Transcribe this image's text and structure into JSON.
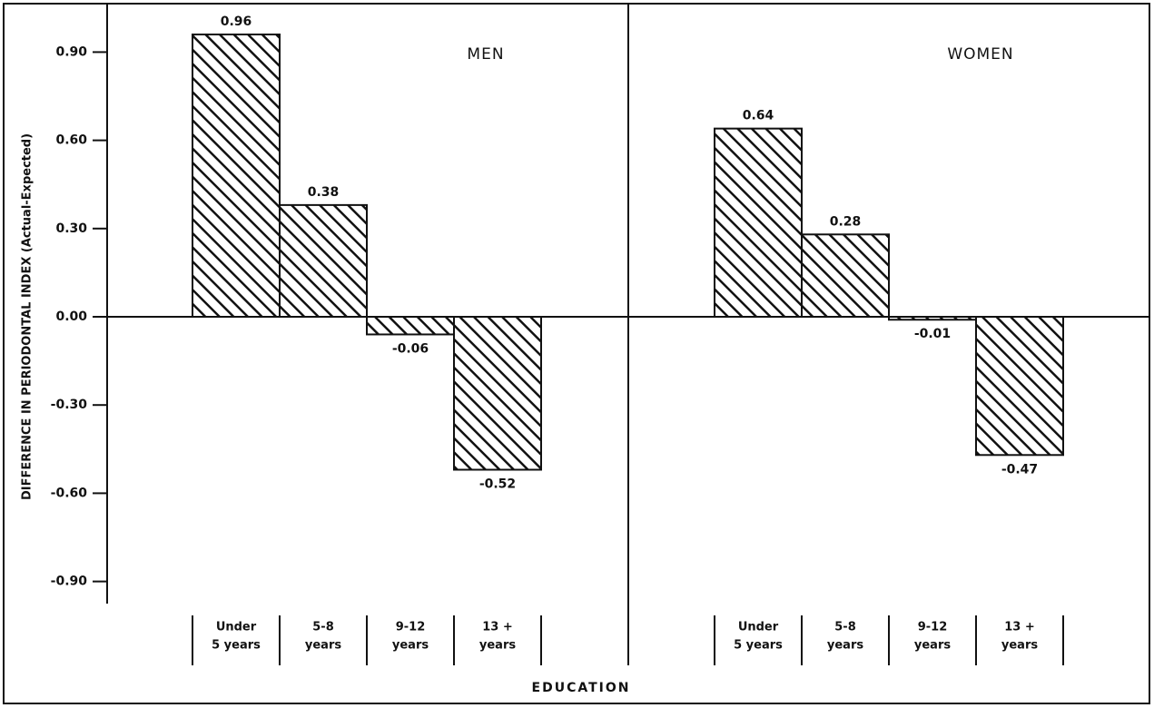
{
  "chart_data": {
    "type": "bar",
    "y_label": "DIFFERENCE IN PERIODONTAL INDEX (Actual-Expected)",
    "x_label": "EDUCATION",
    "ylim": [
      -1.0,
      1.0
    ],
    "yticks": [
      {
        "value": 0.9,
        "label": "0.90"
      },
      {
        "value": 0.6,
        "label": "0.60"
      },
      {
        "value": 0.3,
        "label": "0.30"
      },
      {
        "value": 0,
        "label": "0.00"
      },
      {
        "value": -0.3,
        "label": "-0.30"
      },
      {
        "value": -0.6,
        "label": "-0.60"
      },
      {
        "value": -0.9,
        "label": "-0.90"
      }
    ],
    "color": "#111111",
    "panels": [
      {
        "title": "MEN",
        "categories": [
          [
            "Under",
            "5 years"
          ],
          [
            "5-8",
            "years"
          ],
          [
            "9-12",
            "years"
          ],
          [
            "13 +",
            "years"
          ]
        ],
        "values": [
          0.96,
          0.38,
          -0.06,
          -0.52
        ]
      },
      {
        "title": "WOMEN",
        "categories": [
          [
            "Under",
            "5 years"
          ],
          [
            "5-8",
            "years"
          ],
          [
            "9-12",
            "years"
          ],
          [
            "13 +",
            "years"
          ]
        ],
        "values": [
          0.64,
          0.28,
          -0.01,
          -0.47
        ]
      }
    ]
  }
}
